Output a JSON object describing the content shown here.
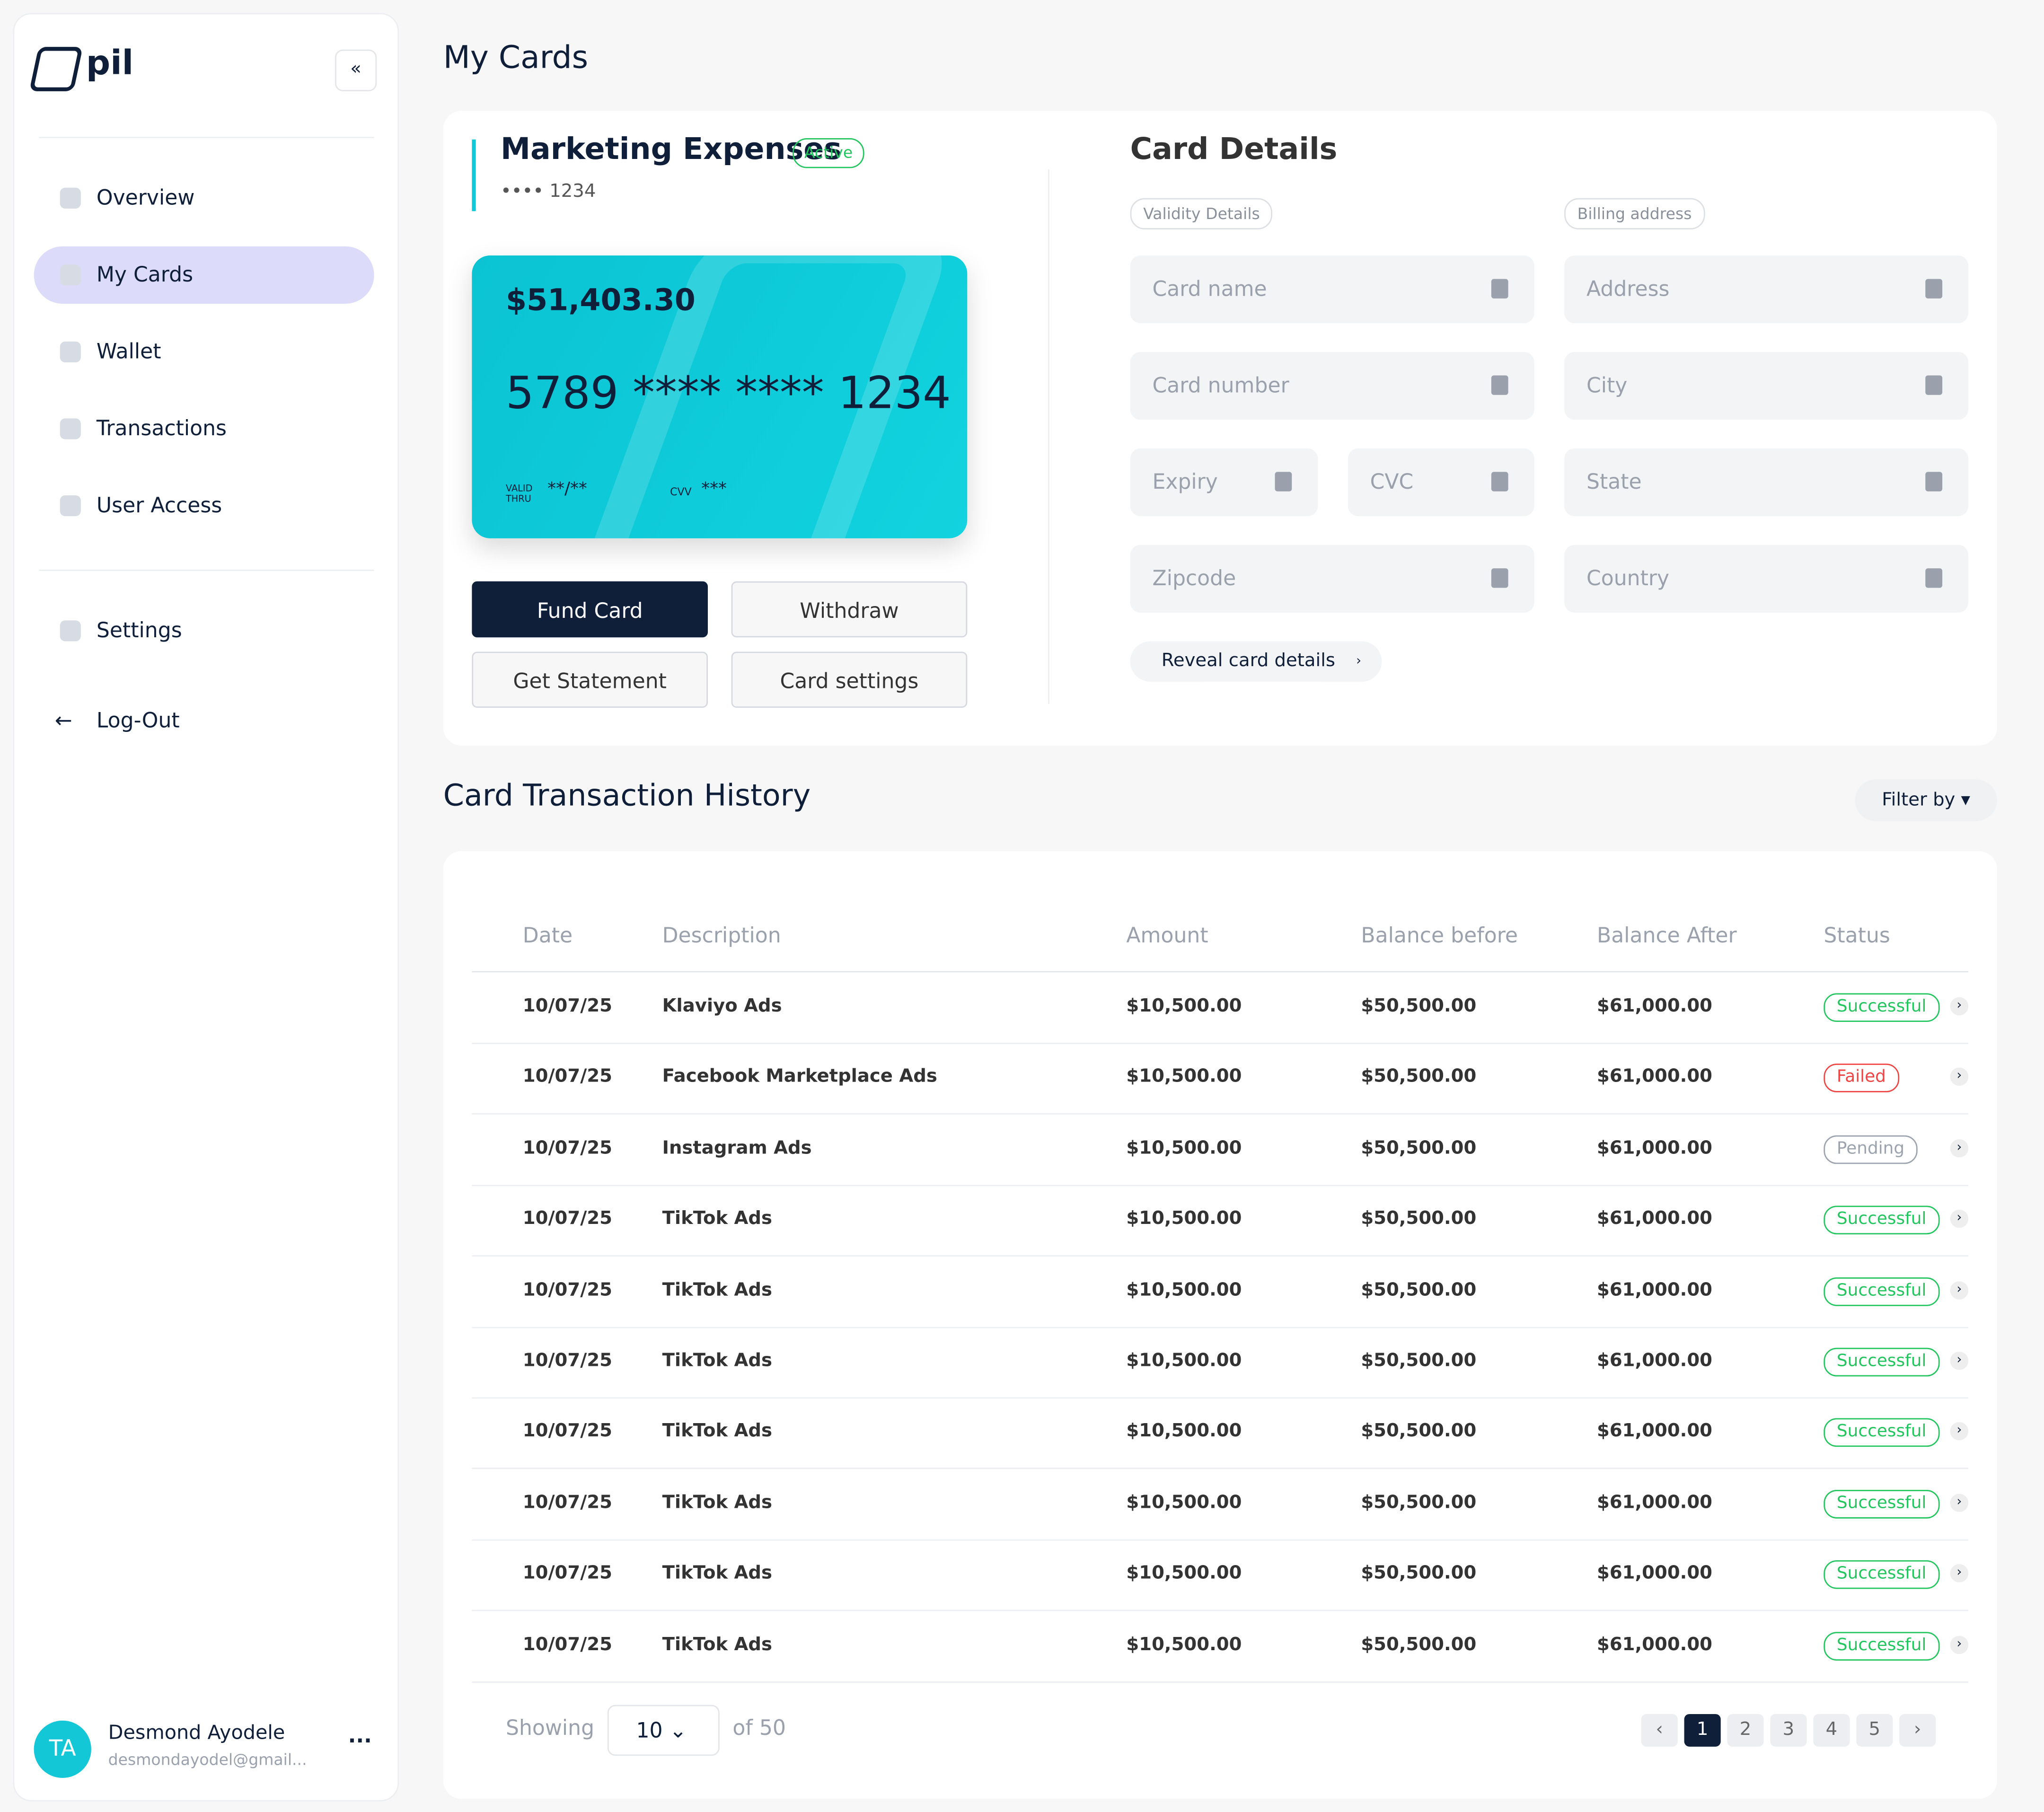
{
  "sidebar": {
    "logo": "pil",
    "nav": [
      "Overview",
      "My Cards",
      "Wallet",
      "Transactions",
      "User Access"
    ],
    "settings": "Settings",
    "logout": "Log-Out",
    "user": {
      "initials": "TA",
      "name": "Desmond Ayodele",
      "email": "desmondayodel@gmail..."
    }
  },
  "page_title": "My Cards",
  "card": {
    "name": "Marketing Expenses",
    "status": "Active",
    "masked": "•••• 1234",
    "balance": "$51,403.30",
    "number": "5789 **** **** 1234",
    "valid_label": "VALID THRU",
    "valid": "**/**",
    "cvv_label": "CVV",
    "cvv": "***",
    "actions": [
      "Fund Card",
      "Withdraw",
      "Get Statement",
      "Card settings"
    ]
  },
  "card_details": {
    "title": "Card Details",
    "validity_label": "Validity Details",
    "billing_label": "Billing address",
    "validity_fields": [
      "Card name",
      "Card number",
      "Expiry",
      "CVC",
      "Zipcode"
    ],
    "billing_fields": [
      "Address",
      "City",
      "State",
      "Country"
    ],
    "reveal": "Reveal card details"
  },
  "history": {
    "title": "Card Transaction History",
    "filter": "Filter by",
    "columns": [
      "Date",
      "Description",
      "Amount",
      "Balance before",
      "Balance After",
      "Status"
    ],
    "rows": [
      {
        "cells": [
          "10/07/25",
          "Klaviyo Ads",
          "$10,500.00",
          "$50,500.00",
          "$61,000.00",
          "Successful"
        ],
        "status_color": "#22c55e"
      },
      {
        "cells": [
          "10/07/25",
          "Facebook Marketplace Ads",
          "$10,500.00",
          "$50,500.00",
          "$61,000.00",
          "Failed"
        ],
        "status_color": "#ef4444"
      },
      {
        "cells": [
          "10/07/25",
          "Instagram Ads",
          "$10,500.00",
          "$50,500.00",
          "$61,000.00",
          "Pending"
        ],
        "status_color": "#9ca3af"
      },
      {
        "cells": [
          "10/07/25",
          "TikTok Ads",
          "$10,500.00",
          "$50,500.00",
          "$61,000.00",
          "Successful"
        ],
        "status_color": "#22c55e"
      },
      {
        "cells": [
          "10/07/25",
          "TikTok Ads",
          "$10,500.00",
          "$50,500.00",
          "$61,000.00",
          "Successful"
        ],
        "status_color": "#22c55e"
      },
      {
        "cells": [
          "10/07/25",
          "TikTok Ads",
          "$10,500.00",
          "$50,500.00",
          "$61,000.00",
          "Successful"
        ],
        "status_color": "#22c55e"
      },
      {
        "cells": [
          "10/07/25",
          "TikTok Ads",
          "$10,500.00",
          "$50,500.00",
          "$61,000.00",
          "Successful"
        ],
        "status_color": "#22c55e"
      },
      {
        "cells": [
          "10/07/25",
          "TikTok Ads",
          "$10,500.00",
          "$50,500.00",
          "$61,000.00",
          "Successful"
        ],
        "status_color": "#22c55e"
      },
      {
        "cells": [
          "10/07/25",
          "TikTok Ads",
          "$10,500.00",
          "$50,500.00",
          "$61,000.00",
          "Successful"
        ],
        "status_color": "#22c55e"
      },
      {
        "cells": [
          "10/07/25",
          "TikTok Ads",
          "$10,500.00",
          "$50,500.00",
          "$61,000.00",
          "Successful"
        ],
        "status_color": "#22c55e"
      }
    ],
    "showing": "Showing",
    "page_size": "10",
    "of": "of 50",
    "pages": [
      "1",
      "2",
      "3",
      "4",
      "5"
    ]
  }
}
